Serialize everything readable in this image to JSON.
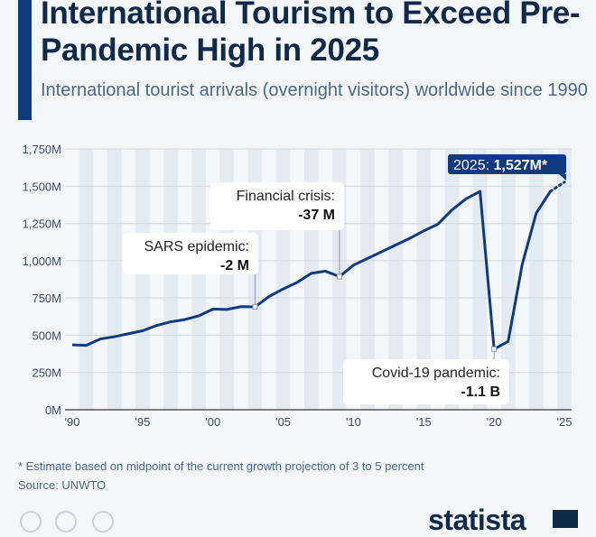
{
  "header": {
    "title": "International Tourism to Exceed Pre-Pandemic High in 2025",
    "subtitle": "International tourist arrivals (overnight visitors) worldwide since 1990"
  },
  "footer": {
    "note": "* Estimate based on midpoint of the current growth projection of 3 to 5 percent",
    "source": "Source: UNWTO",
    "logo": "statista",
    "icons": [
      "creative-commons-icon",
      "info-icon",
      "equals-icon"
    ]
  },
  "colors": {
    "line": "#0e3a80",
    "title": "#0f2a48",
    "subtitle": "#4b6686",
    "accent": "#0e3a80",
    "label_box": "#0e3a80"
  },
  "chart_data": {
    "type": "line",
    "title": "International Tourism to Exceed Pre-Pandemic High in 2025",
    "xlabel": "",
    "ylabel": "",
    "x": [
      1990,
      1991,
      1992,
      1993,
      1994,
      1995,
      1996,
      1997,
      1998,
      1999,
      2000,
      2001,
      2002,
      2003,
      2004,
      2005,
      2006,
      2007,
      2008,
      2009,
      2010,
      2011,
      2012,
      2013,
      2014,
      2015,
      2016,
      2017,
      2018,
      2019,
      2020,
      2021,
      2022,
      2023,
      2024,
      2025
    ],
    "series": [
      {
        "values": [
          435,
          432,
          475,
          490,
          510,
          530,
          565,
          590,
          605,
          630,
          675,
          673,
          692,
          690,
          760,
          810,
          855,
          915,
          930,
          893,
          970,
          1015,
          1060,
          1105,
          1150,
          1200,
          1245,
          1340,
          1415,
          1465,
          407,
          458,
          975,
          1320,
          1465,
          1527
        ]
      }
    ],
    "estimated_from": 2024,
    "ylim": [
      0,
      1750
    ],
    "xlim": [
      1990,
      2025
    ],
    "yticks": [
      0,
      250,
      500,
      750,
      1000,
      1250,
      1500,
      1750
    ],
    "ytick_labels": [
      "0M",
      "250M",
      "500M",
      "750M",
      "1,000M",
      "1,250M",
      "1,500M",
      "1,750M"
    ],
    "xticks": [
      1990,
      1995,
      2000,
      2005,
      2010,
      2015,
      2020,
      2025
    ],
    "xtick_labels": [
      "'90",
      "'95",
      "'00",
      "'05",
      "'10",
      "'15",
      "'20",
      "'25"
    ],
    "grid": true,
    "annotations": [
      {
        "year": 2003,
        "label": "SARS epidemic:",
        "value": "-2 M"
      },
      {
        "year": 2009,
        "label": "Financial crisis:",
        "value": "-37 M"
      },
      {
        "year": 2020,
        "label": "Covid-19 pandemic:",
        "value": "-1.1 B"
      },
      {
        "year": 2025,
        "label": "2025: ",
        "value": "1,527M*"
      }
    ]
  }
}
